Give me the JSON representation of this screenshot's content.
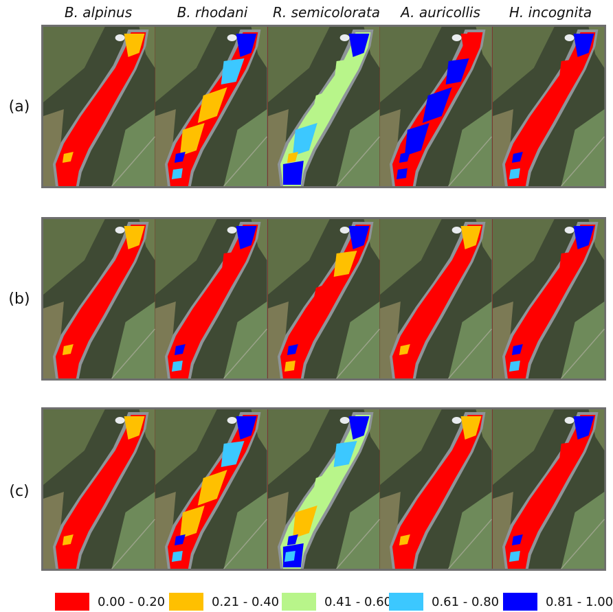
{
  "columns": [
    {
      "species": "B. alpinus"
    },
    {
      "species": "B. rhodani"
    },
    {
      "species": "R. semicolorata"
    },
    {
      "species": "A. auricollis"
    },
    {
      "species": "H. incognita"
    }
  ],
  "rows": [
    {
      "label": "(a)"
    },
    {
      "label": "(b)"
    },
    {
      "label": "(c)"
    }
  ],
  "legend": [
    {
      "range": "0.00 - 0.20",
      "color": "#ff0000"
    },
    {
      "range": "0.21 - 0.40",
      "color": "#ffc000"
    },
    {
      "range": "0.41 - 0.60",
      "color": "#b8f58a"
    },
    {
      "range": "0.61 - 0.80",
      "color": "#3cc8ff"
    },
    {
      "range": "0.81 - 1.00",
      "color": "#0000ff"
    }
  ],
  "habitat_class_maps": [
    [
      "low-dominant",
      "mixed-medium",
      "high-upstream",
      "high-mixed",
      "low-with-high-patches"
    ],
    [
      "low-dominant",
      "low-with-high-patches",
      "low-with-high-upstream",
      "low-dominant",
      "low-with-high-patches"
    ],
    [
      "low-dominant",
      "mixed-medium",
      "medium-high",
      "low-dominant",
      "low-with-high-patches"
    ]
  ]
}
